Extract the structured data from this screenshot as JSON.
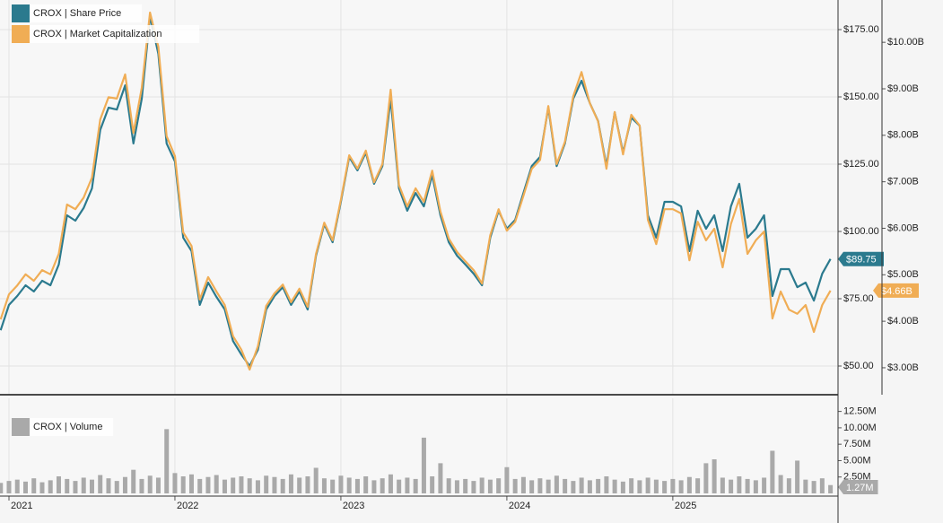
{
  "chart_data": [
    {
      "type": "line",
      "x": [
        2020.95,
        2021.0,
        2021.05,
        2021.1,
        2021.15,
        2021.2,
        2021.25,
        2021.3,
        2021.35,
        2021.4,
        2021.45,
        2021.5,
        2021.55,
        2021.6,
        2021.65,
        2021.7,
        2021.75,
        2021.8,
        2021.85,
        2021.9,
        2021.95,
        2022.0,
        2022.05,
        2022.1,
        2022.15,
        2022.2,
        2022.25,
        2022.3,
        2022.35,
        2022.4,
        2022.45,
        2022.5,
        2022.55,
        2022.6,
        2022.65,
        2022.7,
        2022.75,
        2022.8,
        2022.85,
        2022.9,
        2022.95,
        2023.0,
        2023.05,
        2023.1,
        2023.15,
        2023.2,
        2023.25,
        2023.3,
        2023.35,
        2023.4,
        2023.45,
        2023.5,
        2023.55,
        2023.6,
        2023.65,
        2023.7,
        2023.75,
        2023.8,
        2023.85,
        2023.9,
        2023.95,
        2024.0,
        2024.05,
        2024.1,
        2024.15,
        2024.2,
        2024.25,
        2024.3,
        2024.35,
        2024.4,
        2024.45,
        2024.5,
        2024.55,
        2024.6,
        2024.65,
        2024.7,
        2024.75,
        2024.8,
        2024.85,
        2024.9,
        2024.95,
        2025.0,
        2025.05,
        2025.1,
        2025.15,
        2025.2,
        2025.25,
        2025.3,
        2025.35,
        2025.4,
        2025.45,
        2025.5,
        2025.55,
        2025.6,
        2025.65,
        2025.7,
        2025.75,
        2025.8,
        2025.85,
        2025.9,
        2025.95
      ],
      "xlim": [
        2020.946,
        2025.99
      ],
      "xticks": [
        2021,
        2022,
        2023,
        2024,
        2025
      ],
      "ylim": [
        39.33,
        186
      ],
      "yticks": [
        {
          "value": 50,
          "label": "$50.00"
        },
        {
          "value": 75,
          "label": "$75.00"
        },
        {
          "value": 100,
          "label": "$100.00"
        },
        {
          "value": 125,
          "label": "$125.00"
        },
        {
          "value": 150,
          "label": "$150.00"
        },
        {
          "value": 175,
          "label": "$175.00"
        }
      ],
      "y2lim": [
        2.42,
        10.91
      ],
      "y2ticks": [
        {
          "value": 3,
          "label": "$3.00B"
        },
        {
          "value": 4,
          "label": "$4.00B"
        },
        {
          "value": 5,
          "label": "$5.00B"
        },
        {
          "value": 6,
          "label": "$6.00B"
        },
        {
          "value": 7,
          "label": "$7.00B"
        },
        {
          "value": 8,
          "label": "$8.00B"
        },
        {
          "value": 9,
          "label": "$9.00B"
        },
        {
          "value": 10,
          "label": "$10.00B"
        }
      ],
      "grid": true,
      "series": [
        {
          "name": "CROX | Share Price",
          "color": "#2b7a8e",
          "tag": "$89.75",
          "values": [
            63.3,
            72.7,
            76,
            80,
            77.7,
            81.7,
            80,
            87.7,
            106,
            104,
            108.7,
            116,
            137.7,
            146,
            145.3,
            154.3,
            132.7,
            149.3,
            180,
            166,
            132.7,
            126,
            97.7,
            92.7,
            72.7,
            81,
            75.7,
            71,
            59.3,
            54.3,
            50,
            56,
            71,
            76,
            79.3,
            72.7,
            77.7,
            71,
            91,
            102.7,
            96,
            111,
            127.7,
            122.7,
            129.3,
            117.7,
            124.3,
            149.3,
            116,
            107.7,
            114.3,
            109.3,
            121,
            106,
            96,
            91,
            87.7,
            84.3,
            80,
            97.7,
            107.7,
            101,
            104.3,
            114.3,
            124.3,
            127.7,
            146,
            124.3,
            132.7,
            149.3,
            156,
            147.7,
            141,
            124.3,
            144.3,
            129.3,
            142.3,
            139.3,
            106,
            97.7,
            111,
            111,
            109.3,
            92.7,
            107.7,
            101,
            106,
            92.7,
            109.3,
            117.7,
            97.7,
            101,
            106,
            76,
            86,
            86,
            79.3,
            81,
            74.3,
            84.3,
            89.75
          ]
        },
        {
          "name": "CROX | Market Capitalization",
          "color": "#f0ad55",
          "axis": "y2",
          "tag": "$4.66B",
          "values": [
            4.04,
            4.58,
            4.77,
            5.01,
            4.87,
            5.1,
            5.01,
            5.45,
            6.51,
            6.41,
            6.66,
            7.09,
            8.34,
            8.82,
            8.79,
            9.31,
            8.05,
            9.02,
            10.64,
            9.9,
            7.98,
            7.55,
            5.91,
            5.62,
            4.47,
            4.95,
            4.64,
            4.35,
            3.68,
            3.39,
            2.96,
            3.46,
            4.33,
            4.6,
            4.79,
            4.41,
            4.7,
            4.31,
            5.45,
            6.12,
            5.74,
            6.61,
            7.57,
            7.28,
            7.67,
            6.99,
            7.38,
            8.98,
            6.93,
            6.47,
            6.86,
            6.57,
            7.24,
            6.36,
            5.78,
            5.49,
            5.29,
            5.1,
            4.81,
            5.85,
            6.41,
            5.95,
            6.14,
            6.7,
            7.28,
            7.47,
            8.63,
            7.38,
            7.86,
            8.84,
            9.36,
            8.69,
            8.3,
            7.28,
            8.5,
            7.59,
            8.44,
            8.21,
            6.18,
            5.66,
            6.41,
            6.41,
            6.32,
            5.31,
            6.14,
            5.74,
            5.99,
            5.16,
            6.09,
            6.63,
            5.45,
            5.74,
            5.93,
            4.06,
            4.64,
            4.25,
            4.16,
            4.35,
            3.77,
            4.35,
            4.66
          ]
        }
      ]
    },
    {
      "type": "bar",
      "x": [
        2020.95,
        2021.0,
        2021.05,
        2021.1,
        2021.15,
        2021.2,
        2021.25,
        2021.3,
        2021.35,
        2021.4,
        2021.45,
        2021.5,
        2021.55,
        2021.6,
        2021.65,
        2021.7,
        2021.75,
        2021.8,
        2021.85,
        2021.9,
        2021.95,
        2022.0,
        2022.05,
        2022.1,
        2022.15,
        2022.2,
        2022.25,
        2022.3,
        2022.35,
        2022.4,
        2022.45,
        2022.5,
        2022.55,
        2022.6,
        2022.65,
        2022.7,
        2022.75,
        2022.8,
        2022.85,
        2022.9,
        2022.95,
        2023.0,
        2023.05,
        2023.1,
        2023.15,
        2023.2,
        2023.25,
        2023.3,
        2023.35,
        2023.4,
        2023.45,
        2023.5,
        2023.55,
        2023.6,
        2023.65,
        2023.7,
        2023.75,
        2023.8,
        2023.85,
        2023.9,
        2023.95,
        2024.0,
        2024.05,
        2024.1,
        2024.15,
        2024.2,
        2024.25,
        2024.3,
        2024.35,
        2024.4,
        2024.45,
        2024.5,
        2024.55,
        2024.6,
        2024.65,
        2024.7,
        2024.75,
        2024.8,
        2024.85,
        2024.9,
        2024.95,
        2025.0,
        2025.05,
        2025.1,
        2025.15,
        2025.2,
        2025.25,
        2025.3,
        2025.35,
        2025.4,
        2025.45,
        2025.5,
        2025.55,
        2025.6,
        2025.65,
        2025.7,
        2025.75,
        2025.8,
        2025.85,
        2025.9,
        2025.95
      ],
      "xlim": [
        2020.946,
        2025.99
      ],
      "xticks": [
        2021,
        2022,
        2023,
        2024,
        2025
      ],
      "ylim": [
        0,
        14.5
      ],
      "yticks": [
        {
          "value": 2.5,
          "label": "2.50M"
        },
        {
          "value": 5,
          "label": "5.00M"
        },
        {
          "value": 7.5,
          "label": "7.50M"
        },
        {
          "value": 10,
          "label": "10.00M"
        },
        {
          "value": 12.5,
          "label": "12.50M"
        }
      ],
      "series": [
        {
          "name": "CROX | Volume",
          "color": "#a9a9a9",
          "tag": "1.27M",
          "values": [
            1.6,
            1.9,
            2.1,
            1.8,
            2.3,
            1.7,
            2.0,
            2.6,
            2.2,
            1.9,
            2.4,
            2.1,
            2.8,
            2.3,
            1.9,
            2.5,
            3.6,
            2.2,
            2.7,
            2.4,
            9.8,
            3.1,
            2.6,
            2.9,
            2.2,
            2.5,
            2.8,
            2.1,
            2.4,
            2.6,
            2.3,
            2.0,
            2.7,
            2.5,
            2.2,
            2.9,
            2.4,
            2.6,
            3.9,
            2.3,
            2.1,
            2.7,
            2.4,
            2.2,
            2.6,
            2.0,
            2.3,
            2.9,
            2.1,
            2.4,
            2.2,
            8.5,
            2.6,
            4.6,
            2.3,
            2.0,
            2.2,
            1.9,
            2.4,
            2.1,
            2.3,
            4.0,
            2.2,
            2.5,
            2.0,
            2.3,
            2.1,
            2.7,
            2.2,
            1.9,
            2.4,
            2.0,
            2.2,
            2.6,
            2.1,
            1.8,
            2.3,
            2.0,
            2.4,
            2.1,
            1.9,
            2.2,
            2.0,
            2.5,
            2.3,
            4.6,
            5.2,
            2.4,
            2.1,
            2.6,
            2.2,
            2.0,
            2.4,
            6.5,
            2.8,
            2.3,
            5.0,
            2.1,
            1.9,
            2.3,
            1.27
          ]
        }
      ]
    }
  ]
}
